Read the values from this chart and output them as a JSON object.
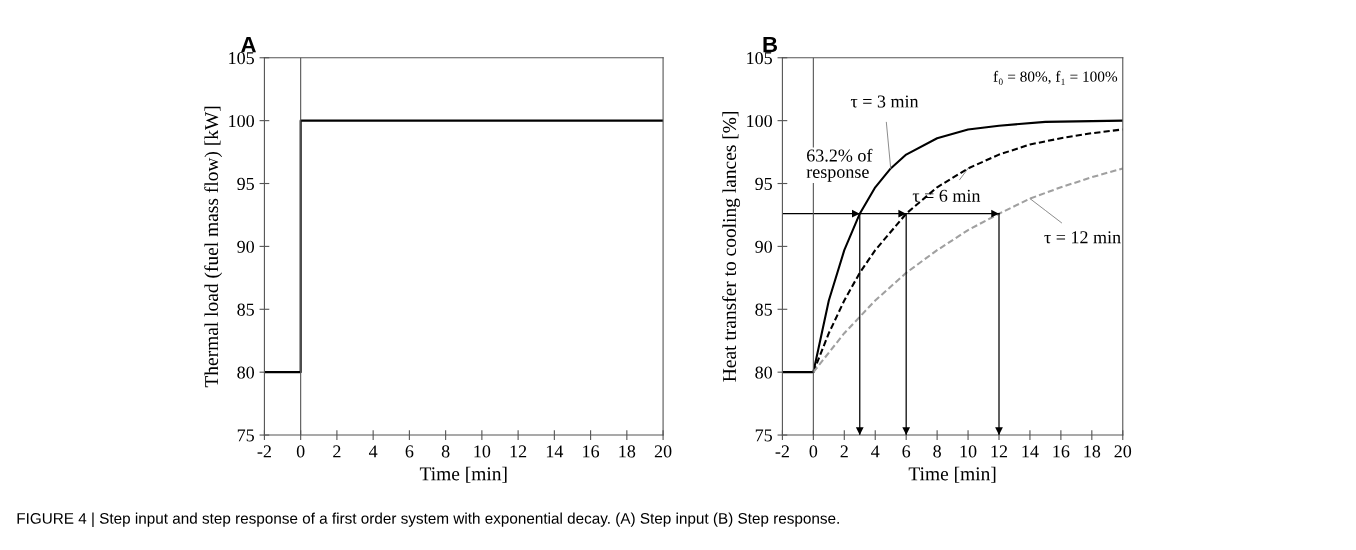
{
  "chart_data": [
    {
      "type": "line",
      "title": "A",
      "xlabel": "Time [min]",
      "ylabel": "Thermal load (fuel mass flow) [kW]",
      "xlim": [
        -2,
        20
      ],
      "xticks": [
        -2,
        0,
        2,
        4,
        6,
        8,
        10,
        12,
        14,
        16,
        18,
        20
      ],
      "ylim": [
        75,
        105
      ],
      "yticks": [
        75,
        80,
        85,
        90,
        95,
        100,
        105
      ],
      "grid": false,
      "legend": false,
      "series": [
        {
          "color": "#000000",
          "x": [
            -2,
            0,
            0,
            20
          ],
          "values": [
            80,
            80,
            100,
            100
          ]
        }
      ],
      "ref_lines": [
        {
          "axis": "x",
          "value": 0,
          "color": "#555555"
        }
      ],
      "annotations": [
        "FIGURE 4 | Step input and step response of a first order system with exponential decay. (A) Step input (B) Step response."
      ]
    },
    {
      "type": "line",
      "title": "B",
      "xlabel": "Time [min]",
      "ylabel": "Heat transfer to cooling lances [%]",
      "xlim": [
        -2,
        20
      ],
      "xticks": [
        -2,
        0,
        2,
        4,
        6,
        8,
        10,
        12,
        14,
        16,
        18,
        20
      ],
      "ylim": [
        75,
        105
      ],
      "yticks": [
        75,
        80,
        85,
        90,
        95,
        100,
        105
      ],
      "grid": false,
      "legend": false,
      "series": [
        {
          "name": "τ = 3 min",
          "color": "#000000",
          "line_style": "solid",
          "x": [
            -2,
            0,
            1,
            2,
            3,
            4,
            5,
            6,
            8,
            10,
            12,
            15,
            20
          ],
          "values": [
            80,
            80,
            85.7,
            89.7,
            92.6,
            94.7,
            96.2,
            97.3,
            98.6,
            99.3,
            99.6,
            99.9,
            100
          ]
        },
        {
          "name": "τ = 6 min",
          "color": "#000000",
          "line_style": "dashed",
          "x": [
            0,
            1,
            2,
            3,
            4,
            6,
            8,
            10,
            12,
            14,
            16,
            18,
            20
          ],
          "values": [
            80,
            83.1,
            85.7,
            87.9,
            89.7,
            92.6,
            94.7,
            96.2,
            97.3,
            98.1,
            98.6,
            99.0,
            99.3
          ]
        },
        {
          "name": "τ = 12 min",
          "color": "#a0a0a0",
          "line_style": "dashed",
          "x": [
            0,
            2,
            4,
            6,
            8,
            10,
            12,
            14,
            16,
            18,
            20
          ],
          "values": [
            80,
            83.1,
            85.7,
            87.9,
            89.7,
            91.3,
            92.6,
            93.8,
            94.7,
            95.5,
            96.2
          ]
        },
        {
          "color": "#000000",
          "line_style": "solid",
          "x": [
            -2,
            3,
            6,
            12
          ],
          "values": [
            92.6,
            92.6,
            92.6,
            92.6
          ]
        },
        {
          "color": "#000000",
          "line_style": "solid",
          "x": [
            3,
            3
          ],
          "values": [
            92.6,
            75
          ]
        },
        {
          "color": "#000000",
          "line_style": "solid",
          "x": [
            6,
            6
          ],
          "values": [
            92.6,
            75
          ]
        },
        {
          "color": "#000000",
          "line_style": "solid",
          "x": [
            12,
            12
          ],
          "values": [
            92.6,
            75
          ]
        }
      ],
      "ref_lines": [
        {
          "axis": "x",
          "value": 0,
          "color": "#555555"
        }
      ],
      "annotations": [
        "f₀ = 80%, f₁ = 100%",
        "63.2% of\nresponse"
      ]
    }
  ]
}
